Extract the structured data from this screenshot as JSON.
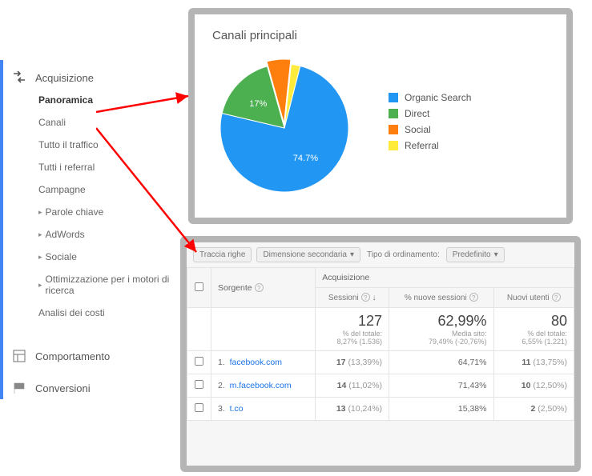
{
  "sidebar": {
    "acquisition": {
      "label": "Acquisizione",
      "items": [
        {
          "label": "Panoramica",
          "active": true
        },
        {
          "label": "Canali"
        },
        {
          "label": "Tutto il traffico"
        },
        {
          "label": "Tutti i referral"
        },
        {
          "label": "Campagne"
        },
        {
          "label": "Parole chiave",
          "sub": true
        },
        {
          "label": "AdWords",
          "sub": true
        },
        {
          "label": "Sociale",
          "sub": true
        },
        {
          "label": "Ottimizzazione per i motori di ricerca",
          "sub": true
        },
        {
          "label": "Analisi dei costi"
        }
      ]
    },
    "behavior_label": "Comportamento",
    "conversions_label": "Conversioni"
  },
  "chart": {
    "title": "Canali principali",
    "type": "pie",
    "slices": [
      {
        "name": "Organic Search",
        "value": 74.7,
        "color": "#2196f3",
        "label": "74.7%"
      },
      {
        "name": "Direct",
        "value": 17,
        "color": "#4caf50",
        "label": "17%"
      },
      {
        "name": "Social",
        "value": 6,
        "color": "#ff7f0e",
        "label": ""
      },
      {
        "name": "Referral",
        "value": 2.3,
        "color": "#ffeb3b",
        "label": ""
      }
    ],
    "legend": [
      "Organic Search",
      "Direct",
      "Social",
      "Referral"
    ],
    "background_color": "#ffffff"
  },
  "table": {
    "toolbar": {
      "trace_rows": "Traccia righe",
      "sec_dim": "Dimensione secondaria",
      "sort_type_label": "Tipo di ordinamento:",
      "sort_type_value": "Predefinito"
    },
    "header": {
      "source": "Sorgente",
      "acquisition": "Acquisizione",
      "sessions": "Sessioni",
      "pct_new_sessions": "% nuove sessioni",
      "new_users": "Nuovi utenti"
    },
    "summary": {
      "sessions": {
        "big": "127",
        "sub1": "% del totale:",
        "sub2": "8,27% (1.536)"
      },
      "pct_new": {
        "big": "62,99%",
        "sub1": "Media sito:",
        "sub2": "79,49% (-20,76%)"
      },
      "new_users": {
        "big": "80",
        "sub1": "% del totale:",
        "sub2": "6,55% (1.221)"
      }
    },
    "rows": [
      {
        "idx": "1.",
        "source": "facebook.com",
        "sessions": "17",
        "sessions_pct": "(13,39%)",
        "pct_new": "64,71%",
        "new_users": "11",
        "new_users_pct": "(13,75%)"
      },
      {
        "idx": "2.",
        "source": "m.facebook.com",
        "sessions": "14",
        "sessions_pct": "(11,02%)",
        "pct_new": "71,43%",
        "new_users": "10",
        "new_users_pct": "(12,50%)"
      },
      {
        "idx": "3.",
        "source": "t.co",
        "sessions": "13",
        "sessions_pct": "(10,24%)",
        "pct_new": "15,38%",
        "new_users": "2",
        "new_users_pct": "(2,50%)"
      }
    ]
  },
  "arrows": {
    "color": "#ff0000"
  }
}
